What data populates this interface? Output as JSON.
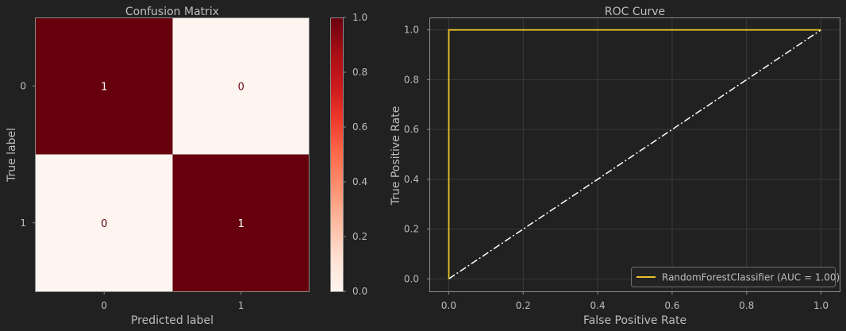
{
  "theme": {
    "background": "#212121",
    "text": "#bdbdbd",
    "spine": "#8a8a8a",
    "grid": "#3a3a3a",
    "roc_color": "#e6c32a",
    "diagonal_color": "#ffffff",
    "cmap_low": "#fff5f0",
    "cmap_high": "#67000d"
  },
  "chart_data": [
    {
      "type": "heatmap",
      "title": "Confusion Matrix",
      "xlabel": "Predicted label",
      "ylabel": "True label",
      "x_categories": [
        "0",
        "1"
      ],
      "y_categories": [
        "0",
        "1"
      ],
      "values": [
        [
          1,
          0
        ],
        [
          0,
          1
        ]
      ],
      "cell_labels": [
        [
          "1",
          "0"
        ],
        [
          "0",
          "1"
        ]
      ],
      "colorbar": {
        "range": [
          0.0,
          1.0
        ],
        "ticks": [
          "0.0",
          "0.2",
          "0.4",
          "0.6",
          "0.8",
          "1.0"
        ],
        "colormap": "Reds"
      }
    },
    {
      "type": "line",
      "title": "ROC Curve",
      "xlabel": "False Positive Rate",
      "ylabel": "True Positive Rate",
      "xlim": [
        -0.05,
        1.05
      ],
      "ylim": [
        -0.05,
        1.05
      ],
      "xticks": [
        "0.0",
        "0.2",
        "0.4",
        "0.6",
        "0.8",
        "1.0"
      ],
      "yticks": [
        "0.0",
        "0.2",
        "0.4",
        "0.6",
        "0.8",
        "1.0"
      ],
      "grid": true,
      "legend_position": "lower-right",
      "series": [
        {
          "name": "RandomForestClassifier (AUC = 1.00)",
          "x": [
            0,
            0,
            1
          ],
          "y": [
            0,
            1,
            1
          ],
          "style": "solid"
        },
        {
          "x": [
            0,
            1
          ],
          "y": [
            0,
            1
          ],
          "style": "dash-dot"
        }
      ]
    }
  ]
}
